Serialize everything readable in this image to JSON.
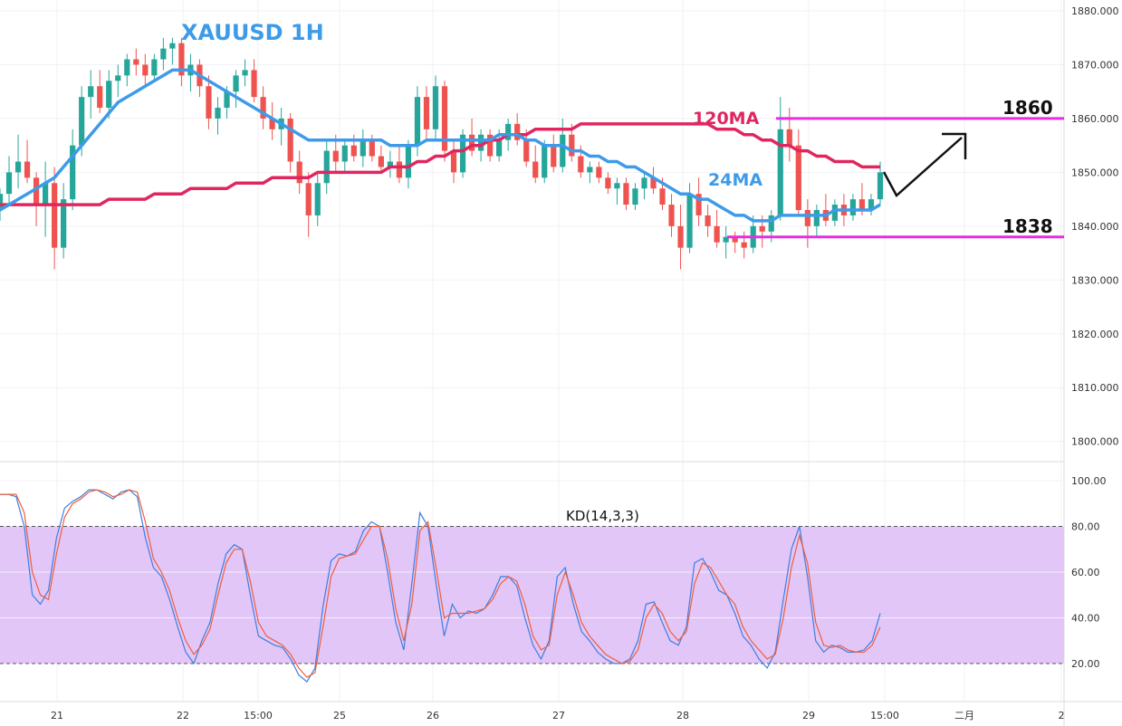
{
  "chart_data": [
    {
      "type": "candlestick",
      "title": "XAUUSD 1H",
      "y_ticks": [
        "1880.000",
        "1870.000",
        "1860.000",
        "1850.000",
        "1840.000",
        "1830.000",
        "1820.000",
        "1810.000",
        "1800.000"
      ],
      "ylim": [
        1795,
        1881
      ],
      "x_ticks": [
        "21",
        "22",
        "15:00",
        "25",
        "26",
        "27",
        "28",
        "29",
        "15:00",
        "二月",
        "2"
      ],
      "grid": true,
      "ohlc": [
        [
          1843,
          1847,
          1841,
          1846
        ],
        [
          1846,
          1853,
          1844,
          1850
        ],
        [
          1850,
          1857,
          1847,
          1852
        ],
        [
          1852,
          1856,
          1848,
          1849
        ],
        [
          1849,
          1850,
          1840,
          1844
        ],
        [
          1844,
          1852,
          1838,
          1848
        ],
        [
          1848,
          1851,
          1832,
          1836
        ],
        [
          1836,
          1848,
          1834,
          1845
        ],
        [
          1845,
          1858,
          1843,
          1855
        ],
        [
          1855,
          1866,
          1853,
          1864
        ],
        [
          1864,
          1869,
          1860,
          1866
        ],
        [
          1866,
          1869,
          1861,
          1862
        ],
        [
          1862,
          1869,
          1860,
          1867
        ],
        [
          1867,
          1870,
          1864,
          1868
        ],
        [
          1868,
          1872,
          1866,
          1871
        ],
        [
          1871,
          1873,
          1868,
          1870
        ],
        [
          1870,
          1872,
          1866,
          1868
        ],
        [
          1868,
          1872,
          1867,
          1871
        ],
        [
          1871,
          1875,
          1869,
          1873
        ],
        [
          1873,
          1875,
          1870,
          1874
        ],
        [
          1874,
          1875,
          1866,
          1868
        ],
        [
          1868,
          1872,
          1865,
          1870
        ],
        [
          1870,
          1871,
          1864,
          1866
        ],
        [
          1866,
          1868,
          1858,
          1860
        ],
        [
          1860,
          1864,
          1857,
          1862
        ],
        [
          1862,
          1866,
          1860,
          1865
        ],
        [
          1865,
          1869,
          1862,
          1868
        ],
        [
          1868,
          1871,
          1866,
          1869
        ],
        [
          1869,
          1871,
          1863,
          1864
        ],
        [
          1864,
          1866,
          1858,
          1860
        ],
        [
          1860,
          1863,
          1856,
          1858
        ],
        [
          1858,
          1862,
          1855,
          1860
        ],
        [
          1860,
          1861,
          1850,
          1852
        ],
        [
          1852,
          1854,
          1846,
          1848
        ],
        [
          1848,
          1850,
          1838,
          1842
        ],
        [
          1842,
          1850,
          1840,
          1848
        ],
        [
          1848,
          1856,
          1846,
          1854
        ],
        [
          1854,
          1857,
          1850,
          1852
        ],
        [
          1852,
          1856,
          1850,
          1855
        ],
        [
          1855,
          1857,
          1852,
          1853
        ],
        [
          1853,
          1858,
          1851,
          1856
        ],
        [
          1856,
          1857,
          1852,
          1853
        ],
        [
          1853,
          1855,
          1850,
          1851
        ],
        [
          1851,
          1854,
          1849,
          1852
        ],
        [
          1852,
          1855,
          1848,
          1849
        ],
        [
          1849,
          1856,
          1847,
          1855
        ],
        [
          1855,
          1866,
          1853,
          1864
        ],
        [
          1864,
          1866,
          1856,
          1858
        ],
        [
          1858,
          1868,
          1856,
          1866
        ],
        [
          1866,
          1867,
          1852,
          1854
        ],
        [
          1854,
          1856,
          1848,
          1850
        ],
        [
          1850,
          1858,
          1849,
          1857
        ],
        [
          1857,
          1860,
          1853,
          1854
        ],
        [
          1854,
          1858,
          1852,
          1857
        ],
        [
          1857,
          1858,
          1852,
          1853
        ],
        [
          1853,
          1858,
          1852,
          1856
        ],
        [
          1856,
          1860,
          1854,
          1859
        ],
        [
          1859,
          1861,
          1855,
          1856
        ],
        [
          1856,
          1858,
          1851,
          1852
        ],
        [
          1852,
          1855,
          1848,
          1849
        ],
        [
          1849,
          1856,
          1848,
          1855
        ],
        [
          1855,
          1857,
          1850,
          1851
        ],
        [
          1851,
          1860,
          1850,
          1857
        ],
        [
          1857,
          1859,
          1852,
          1853
        ],
        [
          1853,
          1855,
          1849,
          1850
        ],
        [
          1850,
          1852,
          1848,
          1851
        ],
        [
          1851,
          1852,
          1848,
          1849
        ],
        [
          1849,
          1850,
          1846,
          1847
        ],
        [
          1847,
          1849,
          1844,
          1848
        ],
        [
          1848,
          1849,
          1843,
          1844
        ],
        [
          1844,
          1848,
          1843,
          1847
        ],
        [
          1847,
          1850,
          1845,
          1849
        ],
        [
          1849,
          1851,
          1846,
          1847
        ],
        [
          1847,
          1849,
          1843,
          1844
        ],
        [
          1844,
          1846,
          1838,
          1840
        ],
        [
          1840,
          1844,
          1832,
          1836
        ],
        [
          1836,
          1848,
          1835,
          1846
        ],
        [
          1846,
          1849,
          1840,
          1842
        ],
        [
          1842,
          1844,
          1838,
          1840
        ],
        [
          1840,
          1843,
          1836,
          1837
        ],
        [
          1837,
          1840,
          1834,
          1838
        ],
        [
          1838,
          1839,
          1835,
          1837
        ],
        [
          1837,
          1839,
          1834,
          1836
        ],
        [
          1836,
          1842,
          1835,
          1840
        ],
        [
          1840,
          1842,
          1836,
          1839
        ],
        [
          1839,
          1843,
          1837,
          1842
        ],
        [
          1842,
          1864,
          1841,
          1858
        ],
        [
          1858,
          1862,
          1852,
          1855
        ],
        [
          1855,
          1858,
          1842,
          1843
        ],
        [
          1843,
          1845,
          1836,
          1840
        ],
        [
          1840,
          1844,
          1838,
          1843
        ],
        [
          1843,
          1846,
          1840,
          1841
        ],
        [
          1841,
          1845,
          1840,
          1844
        ],
        [
          1844,
          1846,
          1840,
          1842
        ],
        [
          1842,
          1846,
          1841,
          1845
        ],
        [
          1845,
          1848,
          1842,
          1843
        ],
        [
          1843,
          1846,
          1842,
          1845
        ],
        [
          1845,
          1852,
          1844,
          1850
        ]
      ],
      "ma24": [
        1843,
        1844,
        1845,
        1846,
        1847,
        1848,
        1849,
        1851,
        1853,
        1855,
        1857,
        1859,
        1861,
        1863,
        1864,
        1865,
        1866,
        1867,
        1868,
        1869,
        1869,
        1869,
        1868,
        1867,
        1866,
        1865,
        1864,
        1863,
        1862,
        1861,
        1860,
        1859,
        1858,
        1857,
        1856,
        1856,
        1856,
        1856,
        1856,
        1856,
        1856,
        1856,
        1856,
        1855,
        1855,
        1855,
        1855,
        1856,
        1856,
        1856,
        1856,
        1856,
        1856,
        1856,
        1856,
        1857,
        1857,
        1857,
        1856,
        1856,
        1855,
        1855,
        1855,
        1854,
        1854,
        1853,
        1853,
        1852,
        1852,
        1851,
        1851,
        1850,
        1849,
        1848,
        1847,
        1846,
        1846,
        1845,
        1845,
        1844,
        1843,
        1842,
        1842,
        1841,
        1841,
        1841,
        1842,
        1842,
        1842,
        1842,
        1842,
        1842,
        1843,
        1843,
        1843,
        1843,
        1843,
        1844
      ],
      "ma120": [
        1844,
        1844,
        1844,
        1844,
        1844,
        1844,
        1844,
        1844,
        1844,
        1844,
        1844,
        1844,
        1845,
        1845,
        1845,
        1845,
        1845,
        1846,
        1846,
        1846,
        1846,
        1847,
        1847,
        1847,
        1847,
        1847,
        1848,
        1848,
        1848,
        1848,
        1849,
        1849,
        1849,
        1849,
        1849,
        1850,
        1850,
        1850,
        1850,
        1850,
        1850,
        1850,
        1850,
        1851,
        1851,
        1851,
        1852,
        1852,
        1853,
        1853,
        1854,
        1854,
        1855,
        1855,
        1856,
        1856,
        1857,
        1857,
        1857,
        1858,
        1858,
        1858,
        1858,
        1858,
        1859,
        1859,
        1859,
        1859,
        1859,
        1859,
        1859,
        1859,
        1859,
        1859,
        1859,
        1859,
        1859,
        1859,
        1859,
        1858,
        1858,
        1858,
        1857,
        1857,
        1856,
        1856,
        1855,
        1855,
        1854,
        1854,
        1853,
        1853,
        1852,
        1852,
        1852,
        1851,
        1851,
        1851
      ],
      "ma_labels": {
        "ma120": "120MA",
        "ma24": "24MA"
      },
      "levels": [
        {
          "label": "1860",
          "value": 1860
        },
        {
          "label": "1838",
          "value": 1838
        }
      ],
      "colors": {
        "up": "#26a69a",
        "down": "#ef5350",
        "ma24": "#3d9be9",
        "ma120": "#e0265f",
        "level": "#e42de4",
        "title": "#3d9be9"
      }
    },
    {
      "type": "line",
      "title": "KD(14,3,3)",
      "y_ticks": [
        "100.00",
        "80.00",
        "60.00",
        "40.00",
        "20.00"
      ],
      "ylim": [
        5,
        105
      ],
      "band": [
        20,
        80
      ],
      "series": [
        {
          "color": "#3d7ee0",
          "values": [
            94,
            94,
            93,
            80,
            50,
            46,
            52,
            75,
            88,
            91,
            93,
            96,
            96,
            94,
            92,
            95,
            96,
            93,
            75,
            62,
            58,
            48,
            36,
            25,
            20,
            30,
            38,
            55,
            68,
            72,
            70,
            50,
            32,
            30,
            28,
            27,
            22,
            15,
            12,
            18,
            45,
            65,
            68,
            67,
            69,
            78,
            82,
            80,
            60,
            38,
            26,
            55,
            86,
            80,
            55,
            32,
            46,
            40,
            43,
            42,
            44,
            50,
            58,
            58,
            54,
            40,
            28,
            22,
            30,
            58,
            62,
            46,
            34,
            30,
            25,
            22,
            20,
            20,
            22,
            30,
            46,
            47,
            38,
            30,
            28,
            36,
            64,
            66,
            60,
            52,
            50,
            42,
            32,
            28,
            22,
            18,
            25,
            48,
            70,
            80,
            58,
            30,
            25,
            28,
            27,
            25,
            25,
            26,
            30,
            42
          ]
        },
        {
          "color": "#ef5e3a",
          "values": [
            94,
            94,
            94,
            86,
            60,
            50,
            48,
            68,
            84,
            90,
            92,
            95,
            96,
            95,
            93,
            94,
            96,
            95,
            82,
            66,
            60,
            52,
            40,
            30,
            24,
            28,
            35,
            50,
            64,
            70,
            70,
            56,
            38,
            32,
            30,
            28,
            24,
            18,
            14,
            16,
            36,
            58,
            66,
            67,
            68,
            74,
            80,
            80,
            66,
            44,
            30,
            46,
            78,
            82,
            62,
            40,
            42,
            42,
            42,
            43,
            44,
            48,
            55,
            58,
            56,
            46,
            32,
            26,
            28,
            50,
            60,
            50,
            38,
            32,
            28,
            24,
            22,
            20,
            21,
            26,
            40,
            46,
            42,
            34,
            30,
            34,
            55,
            64,
            62,
            56,
            50,
            46,
            36,
            30,
            26,
            22,
            24,
            40,
            62,
            76,
            64,
            38,
            28,
            27,
            28,
            26,
            25,
            25,
            28,
            36
          ]
        }
      ],
      "colors": {
        "band": "#e2c6f8"
      }
    }
  ]
}
